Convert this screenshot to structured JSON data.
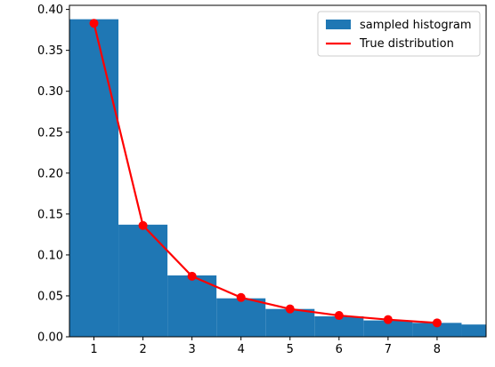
{
  "chart_data": {
    "type": "bar",
    "title": "",
    "xlabel": "",
    "ylabel": "",
    "xlim": [
      0.5,
      9.0
    ],
    "ylim": [
      0.0,
      0.405
    ],
    "x_ticks": [
      1,
      2,
      3,
      4,
      5,
      6,
      7,
      8
    ],
    "x_tick_labels": [
      "1",
      "2",
      "3",
      "4",
      "5",
      "6",
      "7",
      "8"
    ],
    "y_ticks": [
      0.0,
      0.05,
      0.1,
      0.15,
      0.2,
      0.25,
      0.3,
      0.35,
      0.4
    ],
    "y_tick_labels": [
      "0.00",
      "0.05",
      "0.10",
      "0.15",
      "0.20",
      "0.25",
      "0.30",
      "0.35",
      "0.40"
    ],
    "grid": false,
    "legend_position": "top-right",
    "series": [
      {
        "name": "sampled histogram",
        "type": "bar",
        "color": "#1f77b4",
        "bin_edges": [
          0.5,
          1.5,
          2.5,
          3.5,
          4.5,
          5.5,
          6.5,
          7.5,
          8.5,
          9.0
        ],
        "values": [
          0.388,
          0.137,
          0.075,
          0.047,
          0.034,
          0.025,
          0.02,
          0.017,
          0.015
        ]
      },
      {
        "name": "True distribution",
        "type": "line",
        "color": "#ff0000",
        "marker": "circle",
        "x": [
          1,
          2,
          3,
          4,
          5,
          6,
          7,
          8
        ],
        "y": [
          0.383,
          0.136,
          0.074,
          0.048,
          0.034,
          0.026,
          0.021,
          0.017
        ]
      }
    ]
  }
}
